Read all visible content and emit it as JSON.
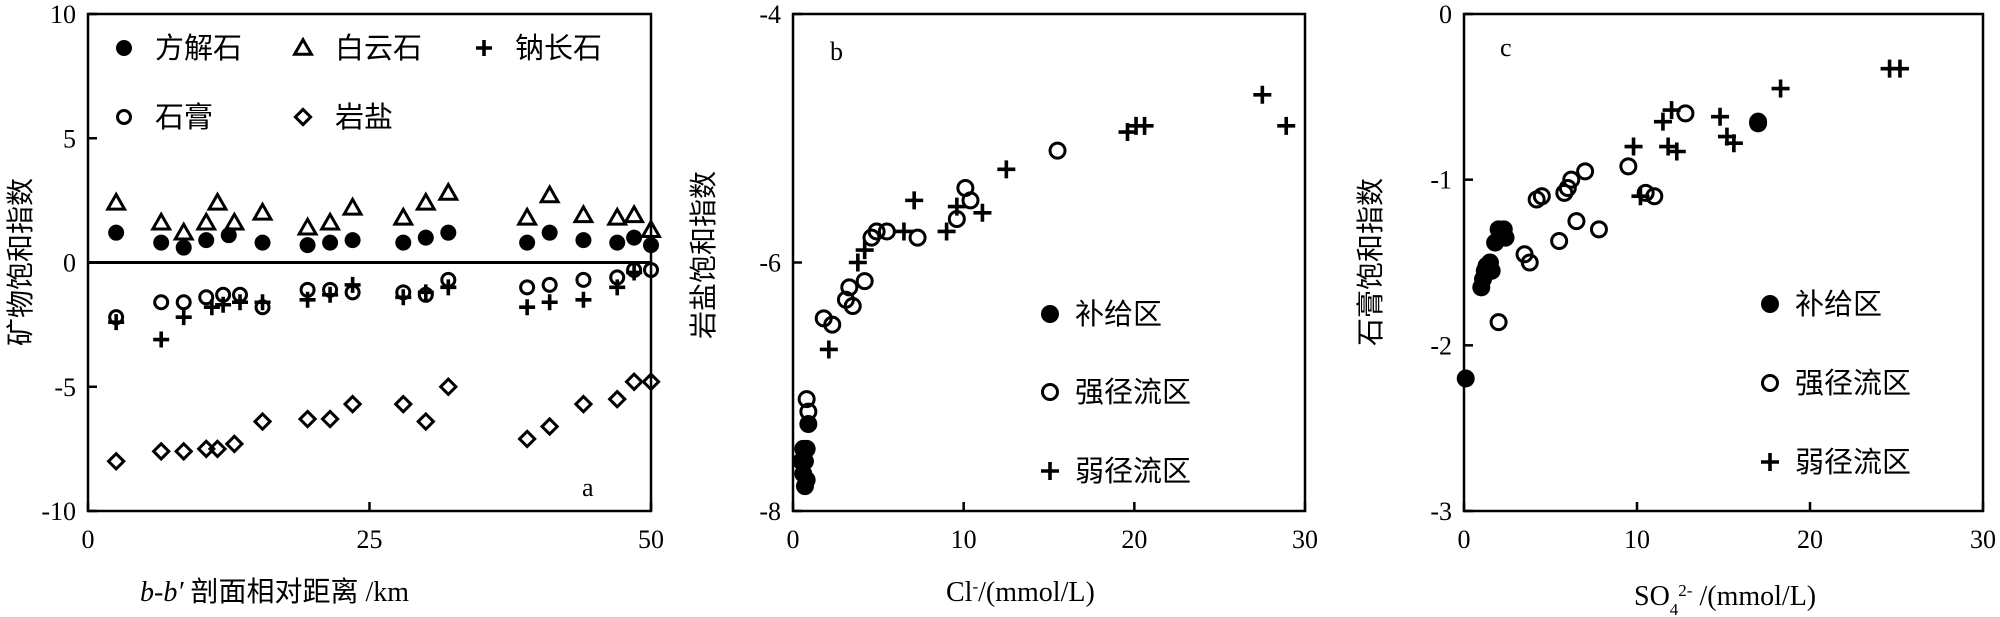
{
  "chart_data": [
    {
      "type": "scatter",
      "panel": "a",
      "xlabel_italic": "b-b′",
      "xlabel_rest": " 剖面相对距离 /km",
      "ylabel": "矿物饱和指数",
      "xlim": [
        0,
        50
      ],
      "ylim": [
        -10,
        10
      ],
      "xticks": [
        0,
        25,
        50
      ],
      "yticks": [
        -10,
        -5,
        0,
        5,
        10
      ],
      "reference_line_y": 0,
      "legend": [
        {
          "name": "方解石",
          "marker": "filled-circle"
        },
        {
          "name": "白云石",
          "marker": "triangle"
        },
        {
          "name": "钠长石",
          "marker": "plus"
        },
        {
          "name": "石膏",
          "marker": "open-circle"
        },
        {
          "name": "岩盐",
          "marker": "diamond"
        }
      ],
      "series": [
        {
          "name": "方解石",
          "marker": "filled-circle",
          "x": [
            2.5,
            6.5,
            8.5,
            10.5,
            12.5,
            15.5,
            19.5,
            21.5,
            23.5,
            28,
            30,
            32,
            39,
            41,
            44,
            47,
            48.5,
            50
          ],
          "y": [
            1.2,
            0.8,
            0.6,
            0.9,
            1.1,
            0.8,
            0.7,
            0.8,
            0.9,
            0.8,
            1.0,
            1.2,
            0.8,
            1.2,
            0.9,
            0.8,
            1.0,
            0.7
          ]
        },
        {
          "name": "白云石",
          "marker": "triangle",
          "x": [
            2.5,
            6.5,
            8.5,
            10.5,
            11.5,
            13,
            15.5,
            19.5,
            21.5,
            23.5,
            28,
            30,
            32,
            39,
            41,
            44,
            47,
            48.5,
            50
          ],
          "y": [
            2.4,
            1.6,
            1.2,
            1.6,
            2.4,
            1.6,
            2.0,
            1.4,
            1.6,
            2.2,
            1.8,
            2.4,
            2.8,
            1.8,
            2.7,
            1.9,
            1.8,
            1.9,
            1.3
          ]
        },
        {
          "name": "钠长石",
          "marker": "plus",
          "x": [
            2.5,
            6.5,
            8.5,
            11,
            12,
            13.5,
            15.5,
            19.5,
            21.5,
            23.5,
            28,
            30,
            32,
            39,
            41,
            44,
            47,
            48.5
          ],
          "y": [
            -2.4,
            -3.1,
            -2.2,
            -1.8,
            -1.7,
            -1.6,
            -1.6,
            -1.5,
            -1.3,
            -0.9,
            -1.4,
            -1.2,
            -1.0,
            -1.8,
            -1.6,
            -1.5,
            -1.0,
            -0.4
          ]
        },
        {
          "name": "石膏",
          "marker": "open-circle",
          "x": [
            2.5,
            6.5,
            8.5,
            10.5,
            12,
            13.5,
            15.5,
            19.5,
            21.5,
            23.5,
            28,
            30,
            32,
            39,
            41,
            44,
            47,
            48.5,
            50
          ],
          "y": [
            -2.2,
            -1.6,
            -1.6,
            -1.4,
            -1.3,
            -1.3,
            -1.8,
            -1.1,
            -1.1,
            -1.2,
            -1.2,
            -1.3,
            -0.7,
            -1.0,
            -0.9,
            -0.7,
            -0.6,
            -0.3,
            -0.3
          ]
        },
        {
          "name": "岩盐",
          "marker": "diamond",
          "x": [
            2.5,
            6.5,
            8.5,
            10.5,
            11.5,
            13,
            15.5,
            19.5,
            21.5,
            23.5,
            28,
            30,
            32,
            39,
            41,
            44,
            47,
            48.5,
            50
          ],
          "y": [
            -8.0,
            -7.6,
            -7.6,
            -7.5,
            -7.5,
            -7.3,
            -6.4,
            -6.3,
            -6.3,
            -5.7,
            -5.7,
            -6.4,
            -5.0,
            -7.1,
            -6.6,
            -5.7,
            -5.5,
            -4.8,
            -4.8
          ]
        }
      ]
    },
    {
      "type": "scatter",
      "panel": "b",
      "xlabel_main": "Cl",
      "xlabel_sup": "-",
      "xlabel_rest": "/(mmol/L)",
      "ylabel": "岩盐饱和指数",
      "xlim": [
        0,
        30
      ],
      "ylim": [
        -8,
        -4
      ],
      "xticks": [
        0,
        10,
        20,
        30
      ],
      "yticks": [
        -8,
        -6,
        -4
      ],
      "legend": [
        {
          "name": "补给区",
          "marker": "filled-circle"
        },
        {
          "name": "强径流区",
          "marker": "open-circle"
        },
        {
          "name": "弱径流区",
          "marker": "plus"
        }
      ],
      "series": [
        {
          "name": "补给区",
          "marker": "filled-circle",
          "x": [
            0.5,
            0.6,
            0.7,
            0.8,
            0.6,
            0.9,
            0.7,
            0.8
          ],
          "y": [
            -7.6,
            -7.7,
            -7.8,
            -7.75,
            -7.5,
            -7.3,
            -7.6,
            -7.5
          ]
        },
        {
          "name": "强径流区",
          "marker": "open-circle",
          "x": [
            0.8,
            0.9,
            1.8,
            2.3,
            3.1,
            3.3,
            3.5,
            4.2,
            4.6,
            4.9,
            5.5,
            7.3,
            9.6,
            10.1,
            10.4,
            15.5
          ],
          "y": [
            -7.1,
            -7.2,
            -6.45,
            -6.5,
            -6.3,
            -6.2,
            -6.35,
            -6.15,
            -5.8,
            -5.75,
            -5.75,
            -5.8,
            -5.65,
            -5.4,
            -5.5,
            -5.1
          ]
        },
        {
          "name": "弱径流区",
          "marker": "plus",
          "x": [
            2.1,
            3.8,
            4.2,
            6.5,
            7.1,
            9.0,
            9.6,
            11.1,
            12.5,
            19.6,
            20.1,
            20.6,
            27.5,
            28.9
          ],
          "y": [
            -6.7,
            -6.0,
            -5.9,
            -5.75,
            -5.5,
            -5.75,
            -5.55,
            -5.6,
            -5.25,
            -4.95,
            -4.9,
            -4.9,
            -4.65,
            -4.9
          ]
        }
      ]
    },
    {
      "type": "scatter",
      "panel": "c",
      "xlabel_main": "SO",
      "xlabel_sub": "4",
      "xlabel_sup": "2-",
      "xlabel_rest": " /(mmol/L)",
      "ylabel": "石膏饱和指数",
      "xlim": [
        0,
        30
      ],
      "ylim": [
        -3,
        0
      ],
      "xticks": [
        0,
        10,
        20,
        30
      ],
      "yticks": [
        -3,
        -2,
        -1,
        0
      ],
      "legend": [
        {
          "name": "补给区",
          "marker": "filled-circle"
        },
        {
          "name": "强径流区",
          "marker": "open-circle"
        },
        {
          "name": "弱径流区",
          "marker": "plus"
        }
      ],
      "series": [
        {
          "name": "补给区",
          "marker": "filled-circle",
          "x": [
            0.1,
            1.0,
            1.1,
            1.2,
            1.3,
            1.5,
            1.6,
            1.8,
            2.0,
            2.3,
            2.4,
            17.0
          ],
          "y": [
            -2.2,
            -1.65,
            -1.6,
            -1.55,
            -1.52,
            -1.5,
            -1.55,
            -1.38,
            -1.3,
            -1.3,
            -1.35,
            -0.66
          ]
        },
        {
          "name": "强径流区",
          "marker": "open-circle",
          "x": [
            2.0,
            3.5,
            3.8,
            4.2,
            4.5,
            5.5,
            5.8,
            6.0,
            6.2,
            6.5,
            7.0,
            7.8,
            9.5,
            10.5,
            11.0,
            12.8,
            17.0
          ],
          "y": [
            -1.86,
            -1.45,
            -1.5,
            -1.12,
            -1.1,
            -1.37,
            -1.08,
            -1.05,
            -1.0,
            -1.25,
            -0.95,
            -1.3,
            -0.92,
            -1.08,
            -1.1,
            -0.6,
            -0.65
          ]
        },
        {
          "name": "弱径流区",
          "marker": "plus",
          "x": [
            9.8,
            10.2,
            11.5,
            11.8,
            12.0,
            12.3,
            14.8,
            15.2,
            15.6,
            18.3,
            24.6,
            25.2
          ],
          "y": [
            -0.8,
            -1.1,
            -0.65,
            -0.8,
            -0.58,
            -0.83,
            -0.62,
            -0.74,
            -0.78,
            -0.45,
            -0.33,
            -0.33
          ]
        }
      ]
    }
  ]
}
